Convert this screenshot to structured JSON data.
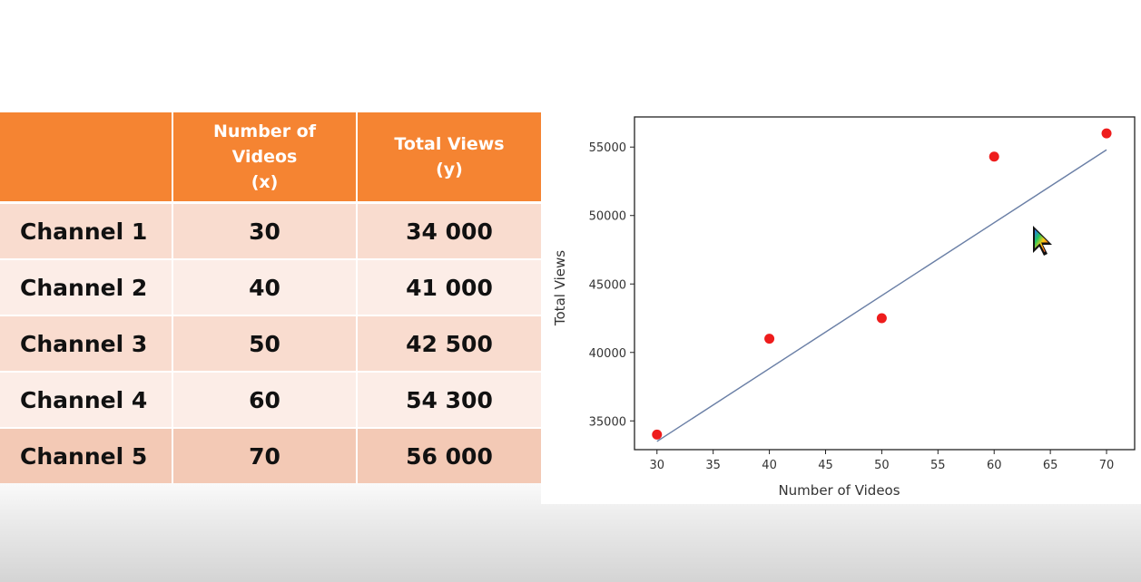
{
  "table": {
    "headers": [
      {
        "lines": []
      },
      {
        "lines": [
          "Number of",
          "Videos",
          "(x)"
        ]
      },
      {
        "lines": [
          "Total Views",
          "(y)"
        ]
      }
    ],
    "rows": [
      {
        "channel": "Channel 1",
        "videos": "30",
        "views": "34 000"
      },
      {
        "channel": "Channel 2",
        "videos": "40",
        "views": "41 000"
      },
      {
        "channel": "Channel 3",
        "videos": "50",
        "views": "42 500"
      },
      {
        "channel": "Channel 4",
        "videos": "60",
        "views": "54 300"
      },
      {
        "channel": "Channel 5",
        "videos": "70",
        "views": "56 000"
      }
    ]
  },
  "chart_data": {
    "type": "scatter",
    "title": "",
    "xlabel": "Number of Videos",
    "ylabel": "Total Views",
    "x": [
      30,
      40,
      50,
      60,
      70
    ],
    "y": [
      34000,
      41000,
      42500,
      54300,
      56000
    ],
    "fit_line": {
      "x": [
        30,
        70
      ],
      "y": [
        33500,
        54800
      ]
    },
    "xlim": [
      28,
      72.5
    ],
    "ylim": [
      32900,
      57200
    ],
    "xticks": [
      30,
      35,
      40,
      45,
      50,
      55,
      60,
      65,
      70
    ],
    "yticks": [
      35000,
      40000,
      45000,
      50000,
      55000
    ],
    "grid": false,
    "point_color": "#ee1c1c",
    "line_color": "#6a7fa6"
  },
  "colors": {
    "header_bg": "#f58432",
    "row_odd": "#f9dccf",
    "row_even": "#fcede7",
    "row_last": "#f3c9b5"
  },
  "icons": {
    "cursor": "rainbow-pointer-icon"
  }
}
